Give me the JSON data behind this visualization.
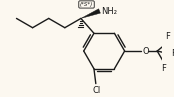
{
  "bg_color": "#fcf8f0",
  "line_color": "#1a1a1a",
  "text_color": "#1a1a1a",
  "bond_lw": 1.0,
  "font_size_atom": 6.0,
  "font_size_stereo": 4.0,
  "NH2_label": "NH₂",
  "Cl_label": "Cl",
  "O_label": "O",
  "stereo_label": "(*S*)"
}
